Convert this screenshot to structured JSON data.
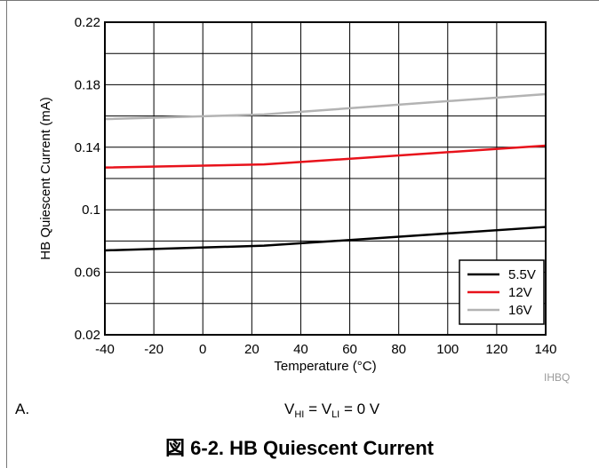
{
  "chart_data": {
    "type": "line",
    "xlabel": "Temperature (°C)",
    "ylabel": "HB Quiescent Current (mA)",
    "xlim": [
      -40,
      140
    ],
    "ylim": [
      0.02,
      0.22
    ],
    "xticks": [
      -40,
      -20,
      0,
      20,
      40,
      60,
      80,
      100,
      120,
      140
    ],
    "yticks": [
      0.02,
      0.06,
      0.1,
      0.14,
      0.18,
      0.22
    ],
    "ytick_labels": [
      "0.02",
      "0.06",
      "0.1",
      "0.14",
      "0.18",
      "0.22"
    ],
    "grid": true,
    "legend_position": "bottom-right",
    "series": [
      {
        "name": "5.5V",
        "color": "#000000",
        "x": [
          -40,
          25,
          140
        ],
        "y": [
          0.074,
          0.077,
          0.089
        ]
      },
      {
        "name": "12V",
        "color": "#e8121b",
        "x": [
          -40,
          25,
          140
        ],
        "y": [
          0.127,
          0.129,
          0.141
        ]
      },
      {
        "name": "16V",
        "color": "#b3b3b3",
        "x": [
          -40,
          25,
          140
        ],
        "y": [
          0.158,
          0.161,
          0.174
        ]
      }
    ]
  },
  "source_id": "IHBQ",
  "note": {
    "label": "A.",
    "v1": "V",
    "v1_sub": "HI",
    "mid": " = V",
    "v2_sub": "LI",
    "tail": " = 0 V"
  },
  "caption": "図 6-2. HB Quiescent Current"
}
